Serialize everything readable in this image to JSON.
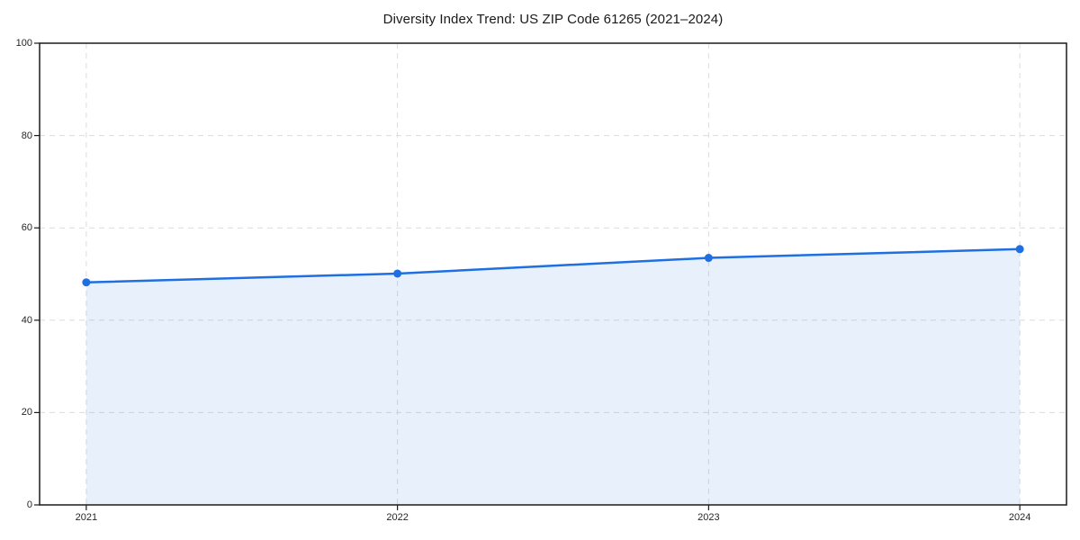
{
  "chart_data": {
    "type": "line",
    "title": "Diversity Index Trend: US ZIP Code 61265 (2021–2024)",
    "x": [
      2021,
      2022,
      2023,
      2024
    ],
    "xticklabels": [
      "2021",
      "2022",
      "2023",
      "2024"
    ],
    "series": [
      {
        "name": "Diversity Index",
        "values": [
          48.2,
          50.1,
          53.5,
          55.4
        ]
      }
    ],
    "xlabel": "",
    "ylabel": "",
    "ylim": [
      0,
      100
    ],
    "yticks": [
      0,
      20,
      40,
      60,
      80,
      100
    ],
    "grid": true,
    "grid_style": "dashed",
    "legend": false,
    "colors": {
      "line": "#1f6fe0",
      "marker": "#1f6fe0",
      "area_fill": "rgba(31,111,224,0.10)",
      "grid": "#dcdcdc",
      "spine": "#1a1a1a",
      "tick_text": "#262626",
      "background": "#ffffff"
    }
  }
}
